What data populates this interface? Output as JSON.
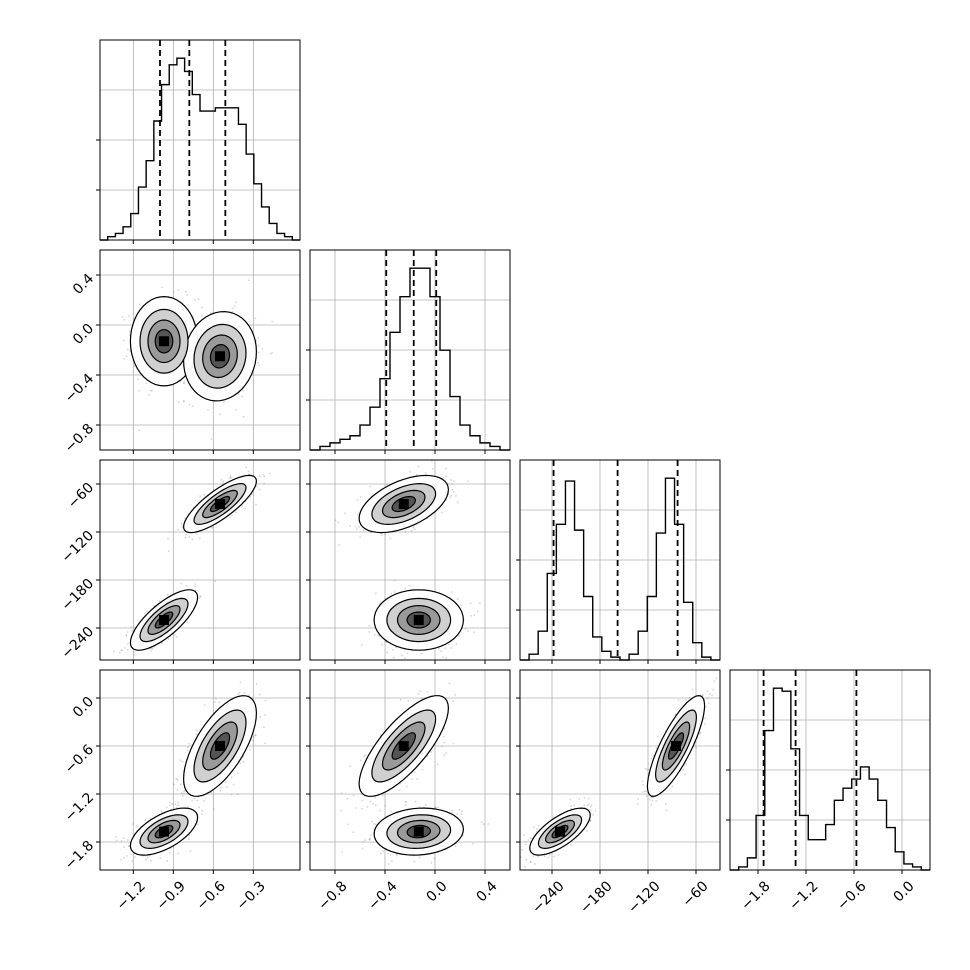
{
  "chart_data": {
    "type": "corner",
    "title": "",
    "parameters": [
      "",
      "",
      "",
      ""
    ],
    "grid": true,
    "colors": {
      "line": "#000000",
      "grid": "#b0b0b0",
      "points": "#888888",
      "fill_dark": "#000000",
      "fill_light": "#d9d9d9"
    },
    "axis_ranges": [
      [
        -1.45,
        0.05
      ],
      [
        -1.0,
        0.6
      ],
      [
        -280,
        -30
      ],
      [
        -2.15,
        0.35
      ]
    ],
    "axis_ticks": [
      {
        "values": [
          -1.2,
          -0.9,
          -0.6,
          -0.3
        ],
        "labels": [
          "−1.2",
          "−0.9",
          "−0.6",
          "−0.3"
        ]
      },
      {
        "values": [
          -0.8,
          -0.4,
          0.0,
          0.4
        ],
        "labels": [
          "−0.8",
          "−0.4",
          "0.0",
          "0.4"
        ]
      },
      {
        "values": [
          -240,
          -180,
          -120,
          -60
        ],
        "labels": [
          "−240",
          "−180",
          "−120",
          "−60"
        ]
      },
      {
        "values": [
          -1.8,
          -1.2,
          -0.6,
          0.0
        ],
        "labels": [
          "−1.8",
          "−1.2",
          "−0.6",
          "0.0"
        ]
      }
    ],
    "quantiles": [
      [
        -1.0,
        -0.78,
        -0.51
      ],
      [
        -0.39,
        -0.17,
        0.01
      ],
      [
        -238,
        -158,
        -83
      ],
      [
        -1.73,
        -1.33,
        -0.57
      ]
    ],
    "histograms": [
      {
        "edges": [
          -1.45,
          0.05
        ],
        "counts": [
          0,
          1,
          2,
          4,
          8,
          16,
          24,
          36,
          47,
          53,
          55,
          51,
          44,
          39,
          39,
          40,
          40,
          40,
          35,
          26,
          17,
          10,
          5,
          2,
          1,
          0
        ]
      },
      {
        "edges": [
          -1.0,
          0.6
        ],
        "counts": [
          0,
          1,
          2,
          3,
          4,
          7,
          12,
          20,
          33,
          43,
          51,
          51,
          43,
          28,
          15,
          7,
          4,
          2,
          1,
          0
        ]
      },
      {
        "edges": [
          -280,
          -30
        ],
        "counts": [
          0,
          2,
          10,
          30,
          47,
          62,
          45,
          22,
          8,
          3,
          1,
          0,
          2,
          10,
          22,
          44,
          63,
          47,
          20,
          6,
          1,
          0
        ]
      },
      {
        "edges": [
          -2.15,
          0.35
        ],
        "counts": [
          0,
          1,
          4,
          18,
          46,
          60,
          59,
          40,
          18,
          10,
          10,
          15,
          23,
          27,
          30,
          34,
          30,
          23,
          14,
          6,
          2,
          1,
          0
        ]
      }
    ],
    "components": [
      {
        "mean": [
          -0.97,
          -0.13,
          -230,
          -1.67
        ],
        "sd": [
          0.12,
          0.17,
          18,
          0.14
        ],
        "corr": [
          [
            1,
            0,
            0.75,
            0.6
          ],
          [
            0,
            1,
            0,
            0.1
          ],
          [
            0.75,
            0,
            1,
            0.7
          ],
          [
            0.6,
            0.1,
            0.7,
            1
          ]
        ]
      },
      {
        "mean": [
          -0.55,
          -0.25,
          -85,
          -0.6
        ],
        "sd": [
          0.13,
          0.17,
          17,
          0.3
        ],
        "corr": [
          [
            1,
            0.1,
            0.8,
            0.65
          ],
          [
            0.1,
            1,
            0.5,
            0.75
          ],
          [
            0.8,
            0.5,
            1,
            0.8
          ],
          [
            0.65,
            0.75,
            0.8,
            1
          ]
        ]
      }
    ]
  }
}
